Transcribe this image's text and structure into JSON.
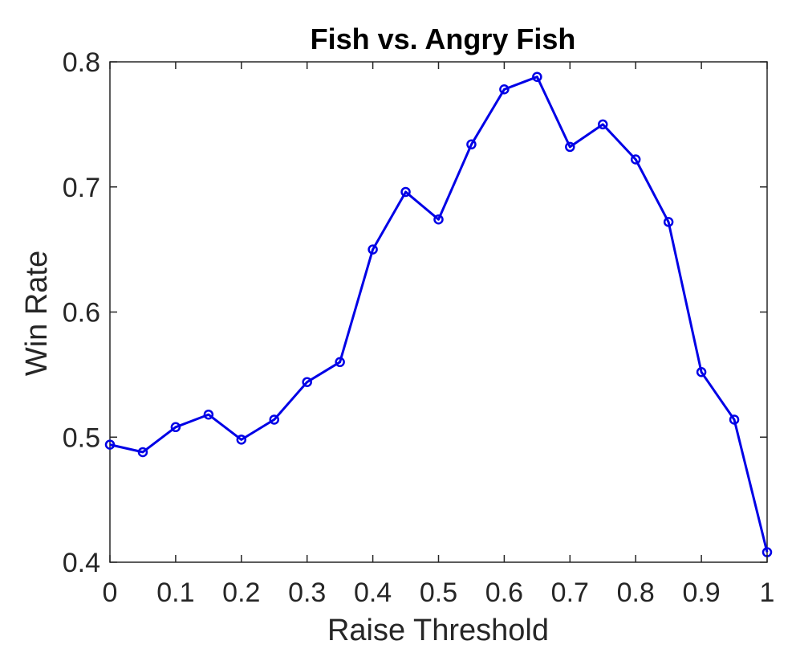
{
  "chart_data": {
    "type": "line",
    "title": "Fish vs. Angry Fish",
    "xlabel": "Raise Threshold",
    "ylabel": "Win Rate",
    "xlim": [
      0,
      1
    ],
    "ylim": [
      0.4,
      0.8
    ],
    "xticks": [
      "0",
      "0.1",
      "0.2",
      "0.3",
      "0.4",
      "0.5",
      "0.6",
      "0.7",
      "0.8",
      "0.9",
      "1"
    ],
    "yticks": [
      "0.4",
      "0.5",
      "0.6",
      "0.7",
      "0.8"
    ],
    "grid": false,
    "marker": "circle",
    "line_color": "#0000e6",
    "x": [
      0,
      0.05,
      0.1,
      0.15,
      0.2,
      0.25,
      0.3,
      0.35,
      0.4,
      0.45,
      0.5,
      0.55,
      0.6,
      0.65,
      0.7,
      0.75,
      0.8,
      0.85,
      0.9,
      0.95,
      1.0
    ],
    "y": [
      0.494,
      0.488,
      0.508,
      0.518,
      0.498,
      0.514,
      0.544,
      0.56,
      0.65,
      0.696,
      0.674,
      0.734,
      0.778,
      0.788,
      0.732,
      0.75,
      0.722,
      0.672,
      0.552,
      0.514,
      0.408
    ]
  }
}
